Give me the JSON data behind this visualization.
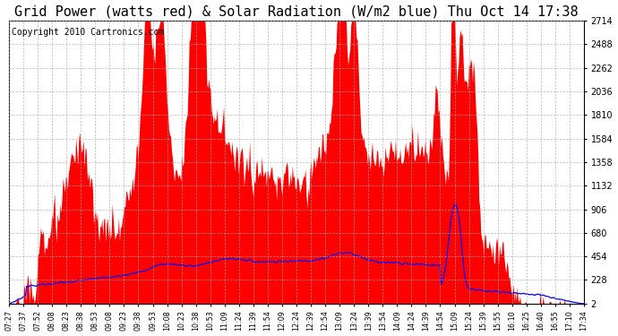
{
  "title": "Grid Power (watts red) & Solar Radiation (W/m2 blue) Thu Oct 14 17:38",
  "copyright": "Copyright 2010 Cartronics.com",
  "yticks": [
    2.3,
    228.3,
    454.3,
    680.3,
    906.3,
    1132.4,
    1358.4,
    1584.4,
    1810.4,
    2036.4,
    2262.5,
    2488.5,
    2714.5
  ],
  "xtick_labels": [
    "07:27",
    "07:37",
    "07:52",
    "08:08",
    "08:23",
    "08:38",
    "08:53",
    "09:08",
    "09:23",
    "09:38",
    "09:53",
    "10:08",
    "10:23",
    "10:38",
    "10:53",
    "11:09",
    "11:24",
    "11:39",
    "11:54",
    "12:09",
    "12:24",
    "12:39",
    "12:54",
    "13:09",
    "13:24",
    "13:39",
    "13:54",
    "14:09",
    "14:24",
    "14:39",
    "14:54",
    "15:09",
    "15:24",
    "15:39",
    "15:55",
    "16:10",
    "16:25",
    "16:40",
    "16:55",
    "17:10",
    "17:34"
  ],
  "ymin": 2.3,
  "ymax": 2714.5,
  "background_color": "#ffffff",
  "plot_bg_color": "#ffffff",
  "grid_color": "#aaaaaa",
  "red_fill_color": "#ff0000",
  "blue_line_color": "#0000ff",
  "title_fontsize": 11,
  "copyright_fontsize": 7
}
